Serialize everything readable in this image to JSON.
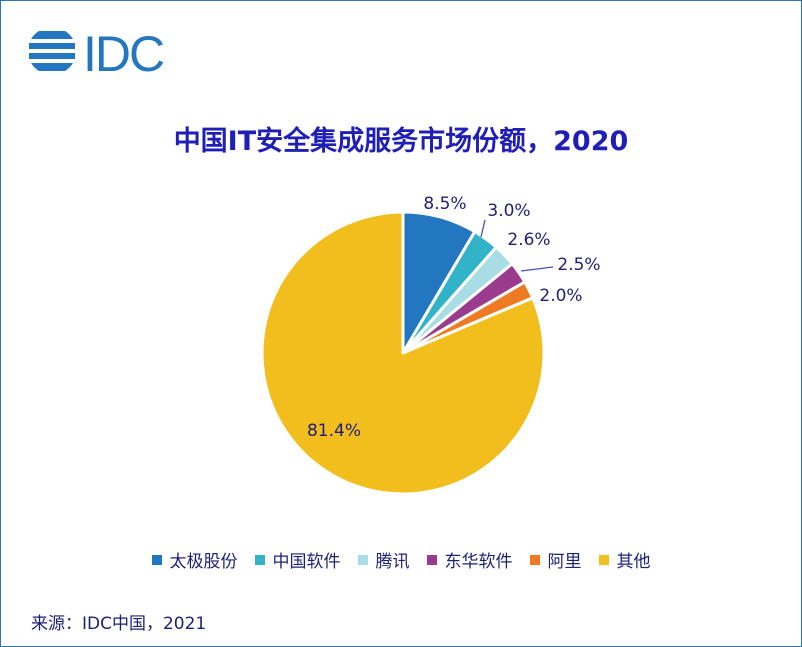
{
  "brand": {
    "logo_text": "IDC"
  },
  "chart_data": {
    "type": "pie",
    "title": "中国IT安全集成服务市场份额，2020",
    "slices": [
      {
        "name": "太极股份",
        "value": 8.5,
        "label": "8.5%",
        "color": "#2377c0"
      },
      {
        "name": "中国软件",
        "value": 3.0,
        "label": "3.0%",
        "color": "#33b3c8"
      },
      {
        "name": "腾讯",
        "value": 2.6,
        "label": "2.6%",
        "color": "#a8dde6"
      },
      {
        "name": "东华软件",
        "value": 2.5,
        "label": "2.5%",
        "color": "#9b3b8e"
      },
      {
        "name": "阿里",
        "value": 2.0,
        "label": "2.0%",
        "color": "#ef7a24"
      },
      {
        "name": "其他",
        "value": 81.4,
        "label": "81.4%",
        "color": "#f2be1e"
      }
    ],
    "legend_position": "bottom"
  },
  "footer": {
    "source": "来源：IDC中国，2021"
  }
}
